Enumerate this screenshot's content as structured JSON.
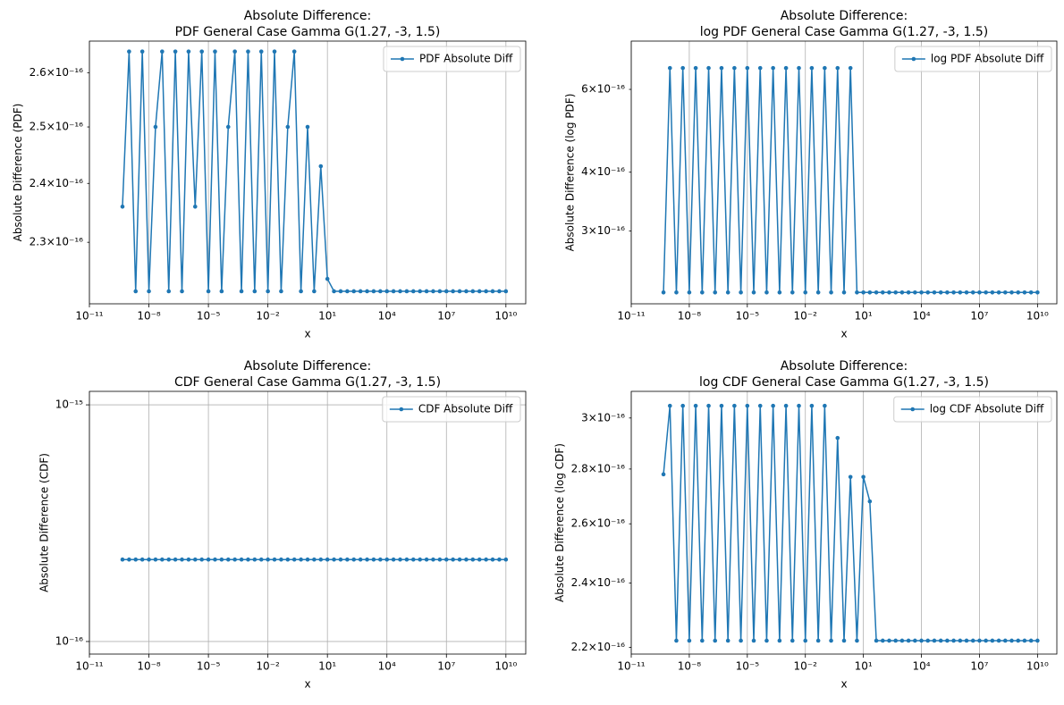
{
  "chart_data": [
    {
      "type": "line",
      "title": [
        "Absolute Difference:",
        "PDF General Case Gamma G(1.27, -3, 1.5)"
      ],
      "x_label": "x",
      "y_label": "Absolute Difference (PDF)",
      "log_x": true,
      "log_y": true,
      "grid": true,
      "legend": "upper right",
      "ytick_kind": "minor",
      "xlim": [
        1e-11,
        100000000000.0
      ],
      "ylim": [
        2.2e-16,
        2.66e-16
      ],
      "xticks": [
        {
          "value": 1e-11,
          "label": "10⁻¹¹"
        },
        {
          "value": 1e-08,
          "label": "10⁻⁸"
        },
        {
          "value": 1e-05,
          "label": "10⁻⁵"
        },
        {
          "value": 0.01,
          "label": "10⁻²"
        },
        {
          "value": 10,
          "label": "10¹"
        },
        {
          "value": 10000.0,
          "label": "10⁴"
        },
        {
          "value": 10000000.0,
          "label": "10⁷"
        },
        {
          "value": 10000000000.0,
          "label": "10¹⁰"
        }
      ],
      "yticks": [
        {
          "value": 2.3e-16,
          "label": "2.3×10⁻¹⁶"
        },
        {
          "value": 2.4e-16,
          "label": "2.4×10⁻¹⁶"
        },
        {
          "value": 2.5e-16,
          "label": "2.5×10⁻¹⁶"
        },
        {
          "value": 2.6e-16,
          "label": "2.6×10⁻¹⁶"
        }
      ],
      "x": [
        4.64e-10,
        1e-09,
        2.15e-09,
        4.64e-09,
        1e-08,
        2.15e-08,
        4.64e-08,
        1e-07,
        2.15e-07,
        4.64e-07,
        1e-06,
        2.15e-06,
        4.64e-06,
        1e-05,
        2.15e-05,
        4.64e-05,
        0.0001,
        0.000215,
        0.000464,
        0.001,
        0.00215,
        0.00464,
        0.01,
        0.0215,
        0.0464,
        0.1,
        0.215,
        0.464,
        1,
        2.15,
        4.64,
        10,
        21.5,
        46.4,
        100,
        215,
        464,
        1000.0,
        2150.0,
        4640.0,
        10000.0,
        21500.0,
        46400.0,
        100000.0,
        215000.0,
        464000.0,
        1000000.0,
        2150000.0,
        4640000.0,
        10000000.0,
        21500000.0,
        46400000.0,
        100000000.0,
        215000000.0,
        464000000.0,
        1000000000.0,
        2150000000.0,
        4640000000.0,
        10000000000.0
      ],
      "series": [
        {
          "name": "PDF Absolute Diff",
          "color": "#1f77b4",
          "values": [
            2.36e-16,
            2.64e-16,
            2.22e-16,
            2.64e-16,
            2.22e-16,
            2.5e-16,
            2.64e-16,
            2.22e-16,
            2.64e-16,
            2.22e-16,
            2.64e-16,
            2.36e-16,
            2.64e-16,
            2.22e-16,
            2.64e-16,
            2.22e-16,
            2.5e-16,
            2.64e-16,
            2.22e-16,
            2.64e-16,
            2.22e-16,
            2.64e-16,
            2.22e-16,
            2.64e-16,
            2.22e-16,
            2.5e-16,
            2.64e-16,
            2.22e-16,
            2.5e-16,
            2.22e-16,
            2.43e-16,
            2.24e-16,
            2.22e-16,
            2.22e-16,
            2.22e-16,
            2.22e-16,
            2.22e-16,
            2.22e-16,
            2.22e-16,
            2.22e-16,
            2.22e-16,
            2.22e-16,
            2.22e-16,
            2.22e-16,
            2.22e-16,
            2.22e-16,
            2.22e-16,
            2.22e-16,
            2.22e-16,
            2.22e-16,
            2.22e-16,
            2.22e-16,
            2.22e-16,
            2.22e-16,
            2.22e-16,
            2.22e-16,
            2.22e-16,
            2.22e-16,
            2.22e-16
          ]
        }
      ]
    },
    {
      "type": "line",
      "title": [
        "Absolute Difference:",
        "log PDF General Case Gamma G(1.27, -3, 1.5)"
      ],
      "x_label": "x",
      "y_label": "Absolute Difference (log PDF)",
      "log_x": true,
      "log_y": true,
      "grid": true,
      "legend": "upper right",
      "ytick_kind": "minor",
      "xlim": [
        1e-11,
        100000000000.0
      ],
      "ylim": [
        2.1e-16,
        7.6e-16
      ],
      "xticks": [
        {
          "value": 1e-11,
          "label": "10⁻¹¹"
        },
        {
          "value": 1e-08,
          "label": "10⁻⁸"
        },
        {
          "value": 1e-05,
          "label": "10⁻⁵"
        },
        {
          "value": 0.01,
          "label": "10⁻²"
        },
        {
          "value": 10,
          "label": "10¹"
        },
        {
          "value": 10000.0,
          "label": "10⁴"
        },
        {
          "value": 10000000.0,
          "label": "10⁷"
        },
        {
          "value": 10000000000.0,
          "label": "10¹⁰"
        }
      ],
      "yticks": [
        {
          "value": 3e-16,
          "label": "3×10⁻¹⁶"
        },
        {
          "value": 4e-16,
          "label": "4×10⁻¹⁶"
        },
        {
          "value": 6e-16,
          "label": "6×10⁻¹⁶"
        }
      ],
      "x": [
        4.64e-10,
        1e-09,
        2.15e-09,
        4.64e-09,
        1e-08,
        2.15e-08,
        4.64e-08,
        1e-07,
        2.15e-07,
        4.64e-07,
        1e-06,
        2.15e-06,
        4.64e-06,
        1e-05,
        2.15e-05,
        4.64e-05,
        0.0001,
        0.000215,
        0.000464,
        0.001,
        0.00215,
        0.00464,
        0.01,
        0.0215,
        0.0464,
        0.1,
        0.215,
        0.464,
        1,
        2.15,
        4.64,
        10,
        21.5,
        46.4,
        100,
        215,
        464,
        1000.0,
        2150.0,
        4640.0,
        10000.0,
        21500.0,
        46400.0,
        100000.0,
        215000.0,
        464000.0,
        1000000.0,
        2150000.0,
        4640000.0,
        10000000.0,
        21500000.0,
        46400000.0,
        100000000.0,
        215000000.0,
        464000000.0,
        1000000000.0,
        2150000000.0,
        4640000000.0,
        10000000000.0
      ],
      "series": [
        {
          "name": "log PDF Absolute Diff",
          "color": "#1f77b4",
          "values": [
            2.22e-16,
            6.66e-16,
            2.22e-16,
            6.66e-16,
            2.22e-16,
            6.66e-16,
            2.22e-16,
            6.66e-16,
            2.22e-16,
            6.66e-16,
            2.22e-16,
            6.66e-16,
            2.22e-16,
            6.66e-16,
            2.22e-16,
            6.66e-16,
            2.22e-16,
            6.66e-16,
            2.22e-16,
            6.66e-16,
            2.22e-16,
            6.66e-16,
            2.22e-16,
            6.66e-16,
            2.22e-16,
            6.66e-16,
            2.22e-16,
            6.66e-16,
            2.22e-16,
            6.66e-16,
            2.22e-16,
            2.22e-16,
            2.22e-16,
            2.22e-16,
            2.22e-16,
            2.22e-16,
            2.22e-16,
            2.22e-16,
            2.22e-16,
            2.22e-16,
            2.22e-16,
            2.22e-16,
            2.22e-16,
            2.22e-16,
            2.22e-16,
            2.22e-16,
            2.22e-16,
            2.22e-16,
            2.22e-16,
            2.22e-16,
            2.22e-16,
            2.22e-16,
            2.22e-16,
            2.22e-16,
            2.22e-16,
            2.22e-16,
            2.22e-16,
            2.22e-16,
            2.22e-16
          ]
        }
      ]
    },
    {
      "type": "line",
      "title": [
        "Absolute Difference:",
        "CDF General Case Gamma G(1.27, -3, 1.5)"
      ],
      "x_label": "x",
      "y_label": "Absolute Difference (CDF)",
      "log_x": true,
      "log_y": true,
      "grid": true,
      "legend": "upper right",
      "ytick_kind": "major",
      "xlim": [
        1e-11,
        100000000000.0
      ],
      "ylim": [
        8.85e-17,
        1.14e-15
      ],
      "xticks": [
        {
          "value": 1e-11,
          "label": "10⁻¹¹"
        },
        {
          "value": 1e-08,
          "label": "10⁻⁸"
        },
        {
          "value": 1e-05,
          "label": "10⁻⁵"
        },
        {
          "value": 0.01,
          "label": "10⁻²"
        },
        {
          "value": 10,
          "label": "10¹"
        },
        {
          "value": 10000.0,
          "label": "10⁴"
        },
        {
          "value": 10000000.0,
          "label": "10⁷"
        },
        {
          "value": 10000000000.0,
          "label": "10¹⁰"
        }
      ],
      "yticks": [
        {
          "value": 1e-16,
          "label": "10⁻¹⁶"
        },
        {
          "value": 1e-15,
          "label": "10⁻¹⁵"
        }
      ],
      "x": [
        4.64e-10,
        1e-09,
        2.15e-09,
        4.64e-09,
        1e-08,
        2.15e-08,
        4.64e-08,
        1e-07,
        2.15e-07,
        4.64e-07,
        1e-06,
        2.15e-06,
        4.64e-06,
        1e-05,
        2.15e-05,
        4.64e-05,
        0.0001,
        0.000215,
        0.000464,
        0.001,
        0.00215,
        0.00464,
        0.01,
        0.0215,
        0.0464,
        0.1,
        0.215,
        0.464,
        1,
        2.15,
        4.64,
        10,
        21.5,
        46.4,
        100,
        215,
        464,
        1000.0,
        2150.0,
        4640.0,
        10000.0,
        21500.0,
        46400.0,
        100000.0,
        215000.0,
        464000.0,
        1000000.0,
        2150000.0,
        4640000.0,
        10000000.0,
        21500000.0,
        46400000.0,
        100000000.0,
        215000000.0,
        464000000.0,
        1000000000.0,
        2150000000.0,
        4640000000.0,
        10000000000.0
      ],
      "series": [
        {
          "name": "CDF Absolute Diff",
          "color": "#1f77b4",
          "values": [
            2.22e-16,
            2.22e-16,
            2.22e-16,
            2.22e-16,
            2.22e-16,
            2.22e-16,
            2.22e-16,
            2.22e-16,
            2.22e-16,
            2.22e-16,
            2.22e-16,
            2.22e-16,
            2.22e-16,
            2.22e-16,
            2.22e-16,
            2.22e-16,
            2.22e-16,
            2.22e-16,
            2.22e-16,
            2.22e-16,
            2.22e-16,
            2.22e-16,
            2.22e-16,
            2.22e-16,
            2.22e-16,
            2.22e-16,
            2.22e-16,
            2.22e-16,
            2.22e-16,
            2.22e-16,
            2.22e-16,
            2.22e-16,
            2.22e-16,
            2.22e-16,
            2.22e-16,
            2.22e-16,
            2.22e-16,
            2.22e-16,
            2.22e-16,
            2.22e-16,
            2.22e-16,
            2.22e-16,
            2.22e-16,
            2.22e-16,
            2.22e-16,
            2.22e-16,
            2.22e-16,
            2.22e-16,
            2.22e-16,
            2.22e-16,
            2.22e-16,
            2.22e-16,
            2.22e-16,
            2.22e-16,
            2.22e-16,
            2.22e-16,
            2.22e-16,
            2.22e-16,
            2.22e-16
          ]
        }
      ]
    },
    {
      "type": "line",
      "title": [
        "Absolute Difference:",
        "log CDF General Case Gamma G(1.27, -3, 1.5)"
      ],
      "x_label": "x",
      "y_label": "Absolute Difference (log CDF)",
      "log_x": true,
      "log_y": true,
      "grid": true,
      "legend": "upper right",
      "ytick_kind": "minor",
      "xlim": [
        1e-11,
        100000000000.0
      ],
      "ylim": [
        2.18e-16,
        3.11e-16
      ],
      "xticks": [
        {
          "value": 1e-11,
          "label": "10⁻¹¹"
        },
        {
          "value": 1e-08,
          "label": "10⁻⁸"
        },
        {
          "value": 1e-05,
          "label": "10⁻⁵"
        },
        {
          "value": 0.01,
          "label": "10⁻²"
        },
        {
          "value": 10,
          "label": "10¹"
        },
        {
          "value": 10000.0,
          "label": "10⁴"
        },
        {
          "value": 10000000.0,
          "label": "10⁷"
        },
        {
          "value": 10000000000.0,
          "label": "10¹⁰"
        }
      ],
      "yticks": [
        {
          "value": 2.2e-16,
          "label": "2.2×10⁻¹⁶"
        },
        {
          "value": 2.4e-16,
          "label": "2.4×10⁻¹⁶"
        },
        {
          "value": 2.6e-16,
          "label": "2.6×10⁻¹⁶"
        },
        {
          "value": 2.8e-16,
          "label": "2.8×10⁻¹⁶"
        },
        {
          "value": 3e-16,
          "label": "3×10⁻¹⁶"
        }
      ],
      "x": [
        4.64e-10,
        1e-09,
        2.15e-09,
        4.64e-09,
        1e-08,
        2.15e-08,
        4.64e-08,
        1e-07,
        2.15e-07,
        4.64e-07,
        1e-06,
        2.15e-06,
        4.64e-06,
        1e-05,
        2.15e-05,
        4.64e-05,
        0.0001,
        0.000215,
        0.000464,
        0.001,
        0.00215,
        0.00464,
        0.01,
        0.0215,
        0.0464,
        0.1,
        0.215,
        0.464,
        1,
        2.15,
        4.64,
        10,
        21.5,
        46.4,
        100,
        215,
        464,
        1000.0,
        2150.0,
        4640.0,
        10000.0,
        21500.0,
        46400.0,
        100000.0,
        215000.0,
        464000.0,
        1000000.0,
        2150000.0,
        4640000.0,
        10000000.0,
        21500000.0,
        46400000.0,
        100000000.0,
        215000000.0,
        464000000.0,
        1000000000.0,
        2150000000.0,
        4640000000.0,
        10000000000.0
      ],
      "series": [
        {
          "name": "log CDF Absolute Diff",
          "color": "#1f77b4",
          "values": [
            2.78e-16,
            3.05e-16,
            2.22e-16,
            3.05e-16,
            2.22e-16,
            3.05e-16,
            2.22e-16,
            3.05e-16,
            2.22e-16,
            3.05e-16,
            2.22e-16,
            3.05e-16,
            2.22e-16,
            3.05e-16,
            2.22e-16,
            3.05e-16,
            2.22e-16,
            3.05e-16,
            2.22e-16,
            3.05e-16,
            2.22e-16,
            3.05e-16,
            2.22e-16,
            3.05e-16,
            2.22e-16,
            3.05e-16,
            2.22e-16,
            2.92e-16,
            2.22e-16,
            2.77e-16,
            2.22e-16,
            2.77e-16,
            2.68e-16,
            2.22e-16,
            2.22e-16,
            2.22e-16,
            2.22e-16,
            2.22e-16,
            2.22e-16,
            2.22e-16,
            2.22e-16,
            2.22e-16,
            2.22e-16,
            2.22e-16,
            2.22e-16,
            2.22e-16,
            2.22e-16,
            2.22e-16,
            2.22e-16,
            2.22e-16,
            2.22e-16,
            2.22e-16,
            2.22e-16,
            2.22e-16,
            2.22e-16,
            2.22e-16,
            2.22e-16,
            2.22e-16,
            2.22e-16
          ]
        }
      ]
    }
  ]
}
